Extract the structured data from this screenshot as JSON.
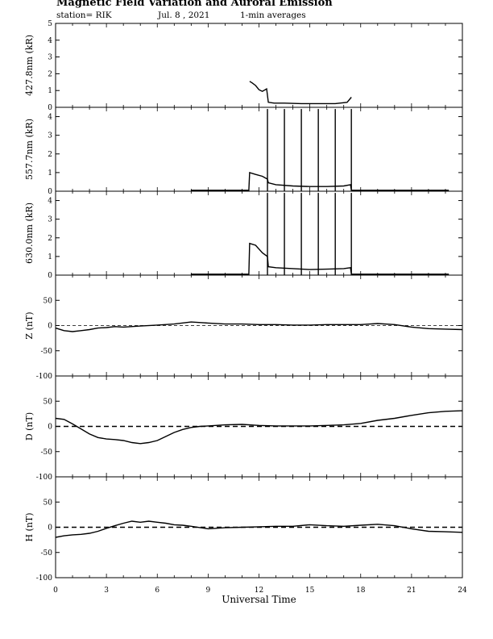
{
  "header": {
    "title": "Magnetic Field Variation and Auroral Emission",
    "station": "station= RIK",
    "date": "Jul.  8  , 2021",
    "averaging": "1-min averages"
  },
  "chart_data": [
    {
      "type": "line",
      "ylabel": "427.8nm (kR)",
      "ylim": [
        0,
        5
      ],
      "yticks": [
        0,
        1,
        2,
        3,
        4,
        5
      ],
      "zero_line": false,
      "series": [
        {
          "x": [
            11.45,
            11.6,
            11.8,
            12.0,
            12.2,
            12.45,
            12.55,
            12.9,
            13.5,
            14.5,
            15.5,
            16.5,
            17.2,
            17.45
          ],
          "y": [
            1.55,
            1.45,
            1.3,
            1.05,
            0.95,
            1.1,
            0.3,
            0.25,
            0.25,
            0.22,
            0.22,
            0.22,
            0.3,
            0.6
          ]
        }
      ],
      "spikes": []
    },
    {
      "type": "line",
      "ylabel": "557.7nm (kR)",
      "ylim": [
        0,
        4.5
      ],
      "yticks": [
        0,
        1,
        2,
        3,
        4
      ],
      "zero_line": false,
      "series": [
        {
          "x": [
            8.0,
            11.4,
            11.45,
            11.8,
            12.2,
            12.5,
            12.55,
            13.0,
            14.0,
            15.0,
            16.0,
            17.0,
            17.4,
            17.45,
            23.2
          ],
          "y": [
            0.05,
            0.05,
            1.0,
            0.9,
            0.8,
            0.65,
            0.45,
            0.35,
            0.28,
            0.25,
            0.25,
            0.28,
            0.35,
            0.05,
            0.05
          ]
        }
      ],
      "spikes": [
        12.5,
        13.5,
        14.5,
        15.5,
        16.5,
        17.45
      ]
    },
    {
      "type": "line",
      "ylabel": "630.0nm (kR)",
      "ylim": [
        0,
        4.5
      ],
      "yticks": [
        0,
        1,
        2,
        3,
        4
      ],
      "zero_line": false,
      "series": [
        {
          "x": [
            8.0,
            11.4,
            11.45,
            11.8,
            12.2,
            12.5,
            12.55,
            13.0,
            14.0,
            15.0,
            16.0,
            17.0,
            17.4,
            17.45,
            23.2
          ],
          "y": [
            0.05,
            0.05,
            1.7,
            1.6,
            1.2,
            1.0,
            0.45,
            0.4,
            0.35,
            0.3,
            0.32,
            0.35,
            0.4,
            0.05,
            0.05
          ]
        }
      ],
      "spikes": [
        12.5,
        13.5,
        14.5,
        15.5,
        16.5,
        17.45
      ]
    },
    {
      "type": "line",
      "ylabel": "Z (nT)",
      "ylim": [
        -100,
        100
      ],
      "yticks": [
        -100,
        -50,
        0,
        50
      ],
      "zero_line": true,
      "series": [
        {
          "x": [
            0,
            0.5,
            1,
            1.5,
            2,
            2.5,
            3,
            3.5,
            4,
            5,
            6,
            7,
            8,
            9,
            10,
            11,
            12,
            13,
            14,
            15,
            16,
            17,
            18,
            19,
            20,
            21,
            22,
            23,
            24
          ],
          "y": [
            -5,
            -10,
            -12,
            -10,
            -8,
            -5,
            -4,
            -2,
            -3,
            -1,
            1,
            3,
            7,
            5,
            3,
            3,
            2,
            2,
            1,
            1,
            2,
            2,
            2,
            4,
            2,
            -3,
            -6,
            -7,
            -8
          ]
        }
      ],
      "spikes": []
    },
    {
      "type": "line",
      "ylabel": "D (nT)",
      "ylim": [
        -100,
        100
      ],
      "yticks": [
        -100,
        -50,
        0,
        50
      ],
      "zero_line": true,
      "series": [
        {
          "x": [
            0,
            0.5,
            1,
            1.5,
            2,
            2.5,
            3,
            3.5,
            4,
            4.5,
            5,
            5.5,
            6,
            6.5,
            7,
            7.5,
            8,
            8.5,
            9,
            10,
            11,
            12,
            13,
            14,
            15,
            16,
            17,
            18,
            19,
            20,
            21,
            22,
            23,
            24
          ],
          "y": [
            16,
            14,
            5,
            -5,
            -15,
            -22,
            -25,
            -26,
            -28,
            -32,
            -34,
            -32,
            -28,
            -20,
            -12,
            -6,
            -2,
            0,
            1,
            3,
            4,
            2,
            1,
            1,
            1,
            2,
            3,
            6,
            12,
            16,
            22,
            27,
            30,
            31
          ]
        }
      ],
      "spikes": []
    },
    {
      "type": "line",
      "ylabel": "H (nT)",
      "ylim": [
        -100,
        100
      ],
      "yticks": [
        -100,
        -50,
        0,
        50
      ],
      "zero_line": true,
      "series": [
        {
          "x": [
            0,
            0.5,
            1,
            1.5,
            2,
            2.5,
            3,
            3.5,
            4,
            4.5,
            5,
            5.5,
            6,
            6.5,
            7,
            7.5,
            8,
            9,
            10,
            11,
            12,
            13,
            14,
            15,
            16,
            17,
            18,
            19,
            20,
            21,
            22,
            23,
            24
          ],
          "y": [
            -20,
            -17,
            -15,
            -14,
            -12,
            -8,
            -2,
            3,
            8,
            12,
            10,
            12,
            10,
            8,
            5,
            4,
            2,
            -3,
            -1,
            0,
            1,
            2,
            2,
            5,
            3,
            2,
            4,
            6,
            3,
            -3,
            -8,
            -9,
            -10
          ]
        }
      ],
      "spikes": []
    }
  ],
  "x_axis": {
    "label": "Universal Time",
    "xlim": [
      0,
      24
    ],
    "ticks": [
      "0",
      "3",
      "6",
      "9",
      "12",
      "15",
      "18",
      "21",
      "24"
    ]
  }
}
